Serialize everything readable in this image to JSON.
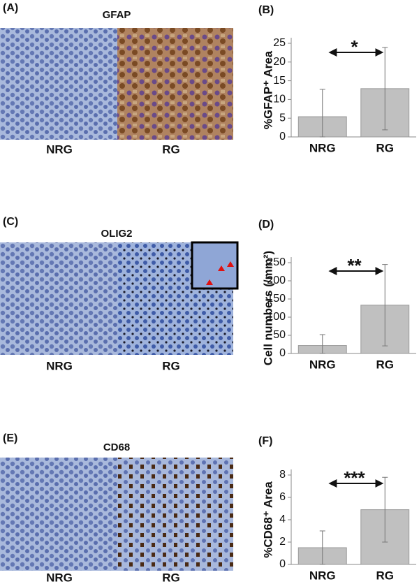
{
  "image_panels": [
    {
      "label": "(A)",
      "title": "GFAP",
      "categories": [
        "NRG",
        "RG"
      ]
    },
    {
      "label": "(C)",
      "title": "OLIG2",
      "categories": [
        "NRG",
        "RG"
      ]
    },
    {
      "label": "(E)",
      "title": "CD68",
      "categories": [
        "NRG",
        "RG"
      ]
    }
  ],
  "chart_data": [
    {
      "type": "bar",
      "panel_label": "(B)",
      "y_label": "%GFAP⁺ Area",
      "categories": [
        "NRG",
        "RG"
      ],
      "values": [
        5.4,
        12.9
      ],
      "errors": [
        7.3,
        11
      ],
      "color": "#c0c0c0",
      "ylim": [
        0,
        25
      ],
      "yticks": [
        0,
        5,
        10,
        15,
        20,
        25
      ],
      "significance": "*"
    },
    {
      "type": "bar",
      "panel_label": "(D)",
      "y_label": "Cell numbers (/mm²)",
      "categories": [
        "NRG",
        "RG"
      ],
      "values": [
        22,
        133
      ],
      "errors": [
        30,
        112
      ],
      "color": "#c0c0c0",
      "ylim": [
        0,
        250
      ],
      "yticks": [
        0,
        50,
        100,
        150,
        200,
        250
      ],
      "significance": "**"
    },
    {
      "type": "bar",
      "panel_label": "(F)",
      "y_label": "%CD68⁺ Area",
      "categories": [
        "NRG",
        "RG"
      ],
      "values": [
        1.5,
        4.9
      ],
      "errors": [
        1.5,
        2.9
      ],
      "color": "#c0c0c0",
      "ylim": [
        0,
        8
      ],
      "yticks": [
        0,
        2,
        4,
        6,
        8
      ],
      "significance": "***"
    }
  ]
}
